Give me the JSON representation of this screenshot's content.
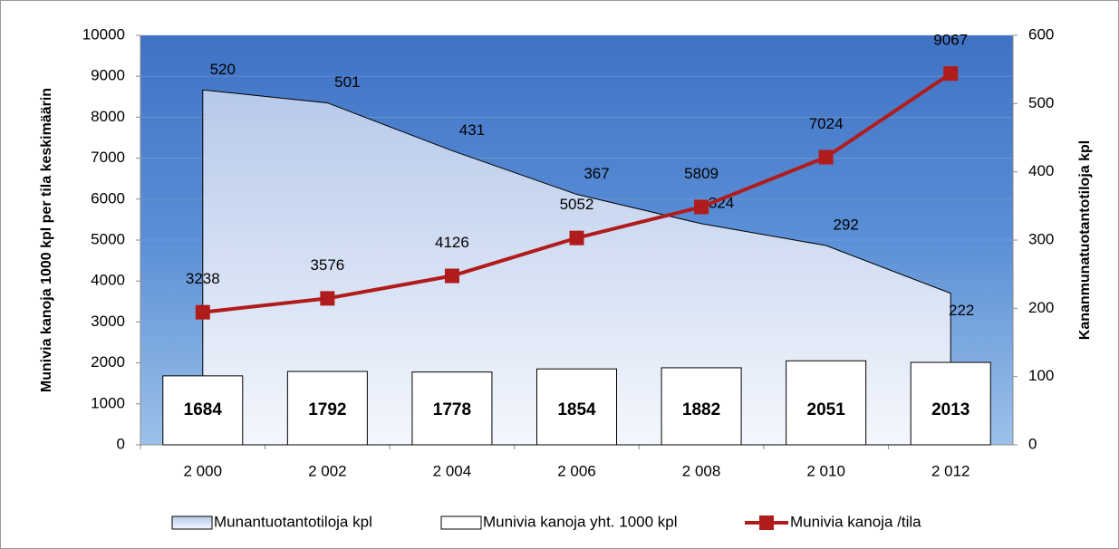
{
  "chart_data": {
    "type": "combo",
    "categories": [
      "2 000",
      "2 002",
      "2 004",
      "2 006",
      "2 008",
      "2 010",
      "2 012"
    ],
    "series": [
      {
        "name": "Munantuotantotiloja kpl",
        "type": "area",
        "axis": "y2",
        "color": "#c9d7ef",
        "values": [
          520,
          501,
          431,
          367,
          324,
          292,
          222
        ]
      },
      {
        "name": "Munivia kanoja yht. 1000 kpl",
        "type": "bar",
        "color": "#ffffff",
        "values": [
          1684,
          1792,
          1778,
          1854,
          1882,
          2051,
          2013
        ]
      },
      {
        "name": "Munivia kanoja /tila",
        "type": "line",
        "color": "#b01c1c",
        "values": [
          3238,
          3576,
          4126,
          5052,
          5809,
          7024,
          9067
        ]
      }
    ],
    "y_label": "Munivia kanoja  1000 kpl per tila keskimäärin",
    "y2_label": "Kananmunatuotantotiloja kpl",
    "ylim": [
      0,
      10000
    ],
    "yticks": [
      0,
      1000,
      2000,
      3000,
      4000,
      5000,
      6000,
      7000,
      8000,
      9000,
      10000
    ],
    "y2lim": [
      0,
      600
    ],
    "y2ticks": [
      0,
      100,
      200,
      300,
      400,
      500,
      600
    ],
    "grid": true,
    "legend": "bottom"
  }
}
